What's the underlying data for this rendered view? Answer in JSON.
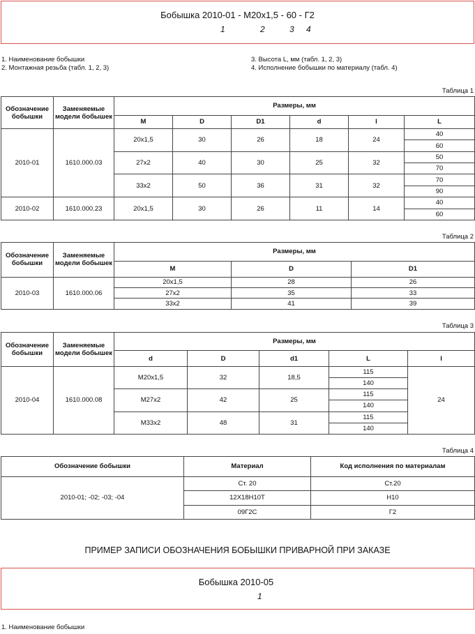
{
  "designation_box": {
    "text": "Бобышка 2010-01 - M20x1,5 - 60 - Г2",
    "indices": [
      "1",
      "2",
      "3",
      "4"
    ]
  },
  "notes_left": [
    "1. Наименование бобышки",
    "2. Монтажная резьба (табл. 1, 2, 3)"
  ],
  "notes_right": [
    "3. Высота L, мм (табл. 1, 2, 3)",
    "4. Исполнение бобышки по материалу (табл. 4)"
  ],
  "table1": {
    "caption": "Таблица 1",
    "h_designation": "Обозначение бобышки",
    "h_replaced": "Заменяемые модели бобышек",
    "h_dims": "Размеры, мм",
    "cols": [
      "M",
      "D",
      "D1",
      "d",
      "l",
      "L"
    ],
    "groups": [
      {
        "designation": "2010-01",
        "replaced": "1610.000.03",
        "rows": [
          {
            "M": "20x1,5",
            "D": "30",
            "D1": "26",
            "d": "18",
            "l": "24",
            "L": [
              "40",
              "60"
            ]
          },
          {
            "M": "27x2",
            "D": "40",
            "D1": "30",
            "d": "25",
            "l": "32",
            "L": [
              "50",
              "70"
            ]
          },
          {
            "M": "33x2",
            "D": "50",
            "D1": "36",
            "d": "31",
            "l": "32",
            "L": [
              "70",
              "90"
            ]
          }
        ]
      },
      {
        "designation": "2010-02",
        "replaced": "1610.000.23",
        "rows": [
          {
            "M": "20x1,5",
            "D": "30",
            "D1": "26",
            "d": "11",
            "l": "14",
            "L": [
              "40",
              "60"
            ]
          }
        ]
      }
    ]
  },
  "table2": {
    "caption": "Таблица 2",
    "h_designation": "Обозначение бобышки",
    "h_replaced": "Заменяемые модели бобышек",
    "h_dims": "Размеры, мм",
    "cols": [
      "M",
      "D",
      "D1"
    ],
    "designation": "2010-03",
    "replaced": "1610.000.06",
    "rows": [
      [
        "20x1,5",
        "28",
        "26"
      ],
      [
        "27x2",
        "35",
        "33"
      ],
      [
        "33x2",
        "41",
        "39"
      ]
    ]
  },
  "table3": {
    "caption": "Таблица 3",
    "h_designation": "Обозначение бобышки",
    "h_replaced": "Заменяемые модели бобышек",
    "h_dims": "Размеры, мм",
    "cols": [
      "d",
      "D",
      "d1",
      "L",
      "l"
    ],
    "designation": "2010-04",
    "replaced": "1610.000.08",
    "l_value": "24",
    "rows": [
      {
        "d": "M20x1,5",
        "D": "32",
        "d1": "18,5",
        "L": [
          "115",
          "140"
        ]
      },
      {
        "d": "M27x2",
        "D": "42",
        "d1": "25",
        "L": [
          "115",
          "140"
        ]
      },
      {
        "d": "M33x2",
        "D": "48",
        "d1": "31",
        "L": [
          "115",
          "140"
        ]
      }
    ]
  },
  "table4": {
    "caption": "Таблица 4",
    "h_designation": "Обозначение бобышки",
    "h_material": "Материал",
    "h_code": "Код исполнения по материалам",
    "designation": "2010-01; -02; -03; -04",
    "rows": [
      [
        "Ст. 20",
        "Ст.20"
      ],
      [
        "12Х18Н10Т",
        "Н10"
      ],
      [
        "09Г2С",
        "Г2"
      ]
    ]
  },
  "example_heading": "ПРИМЕР ЗАПИСИ ОБОЗНАЧЕНИЯ БОБЫШКИ ПРИВАРНОЙ ПРИ ЗАКАЗЕ",
  "example_box": {
    "text": "Бобышка 2010-05",
    "indices": [
      "1"
    ]
  },
  "example_note": "1. Наименование бобышки",
  "colors": {
    "box_border": "#d9534f",
    "table_border": "#444444"
  }
}
